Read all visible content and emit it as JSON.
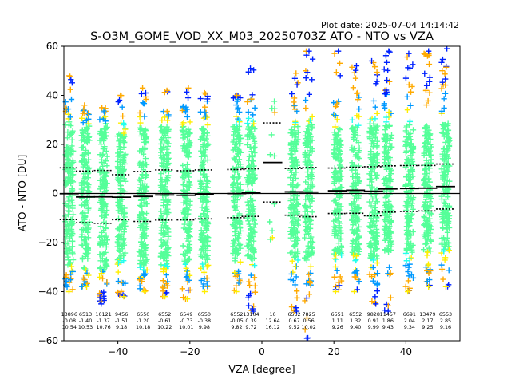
{
  "header": {
    "plot_date": "Plot date: 2025-07-04 14:14:42",
    "title": "S-O3M_GOME_VOD_XX_M03_20250703Z ATO - NTO vs VZA"
  },
  "chart_data": {
    "type": "scatter",
    "title": "S-O3M_GOME_VOD_XX_M03_20250703Z ATO - NTO vs VZA",
    "xlabel": "VZA [degree]",
    "ylabel": "ATO - NTO [DU]",
    "xlim": [
      -55,
      55
    ],
    "ylim": [
      -60,
      60
    ],
    "xticks": [
      -40,
      -20,
      0,
      20,
      40
    ],
    "yticks": [
      -60,
      -40,
      -20,
      0,
      20,
      40,
      60
    ],
    "marker": "+",
    "colormap": [
      "#0022ff",
      "#0099ff",
      "#22ffee",
      "#55ff99",
      "#aaff44",
      "#ffee00",
      "#ffaa00"
    ],
    "zero_line": true,
    "bins": [
      {
        "vza": -53.5,
        "count": "13896",
        "mean": "-0.08",
        "std": "10.54",
        "min": -40,
        "max": 48
      },
      {
        "vza": -49,
        "count": "6513",
        "mean": "-1.40",
        "std": "10.53",
        "min": -38,
        "max": 36
      },
      {
        "vza": -44,
        "count": "10121",
        "mean": "-1.37",
        "std": "10.76",
        "min": -45,
        "max": 35
      },
      {
        "vza": -39,
        "count": "9456",
        "mean": "-1.51",
        "std": "9.18",
        "min": -42,
        "max": 40
      },
      {
        "vza": -33,
        "count": "6550",
        "mean": "-1.20",
        "std": "10.18",
        "min": -40,
        "max": 43
      },
      {
        "vza": -27,
        "count": "6552",
        "mean": "-0.61",
        "std": "10.22",
        "min": -42,
        "max": 42
      },
      {
        "vza": -21,
        "count": "6549",
        "mean": "-0.73",
        "std": "10.01",
        "min": -43,
        "max": 43
      },
      {
        "vza": -16,
        "count": "6550",
        "mean": "-0.38",
        "std": "9.98",
        "min": -40,
        "max": 41
      },
      {
        "vza": -7,
        "count": "6552",
        "mean": "-0.05",
        "std": "9.82",
        "min": -40,
        "max": 40
      },
      {
        "vza": -3,
        "count": "13104",
        "mean": "0.39",
        "std": "9.72",
        "min": -48,
        "max": 51
      },
      {
        "vza": 3,
        "count": "10",
        "mean": "12.64",
        "std": "16.12",
        "min": -18,
        "max": 33
      },
      {
        "vza": 9,
        "count": "6552",
        "mean": "0.67",
        "std": "9.52",
        "min": -48,
        "max": 49
      },
      {
        "vza": 13,
        "count": "7825",
        "mean": "0.56",
        "std": "10.02",
        "min": -59,
        "max": 58
      },
      {
        "vza": 21,
        "count": "6551",
        "mean": "1.11",
        "std": "9.26",
        "min": -40,
        "max": 58
      },
      {
        "vza": 26,
        "count": "6552",
        "mean": "1.32",
        "std": "9.40",
        "min": -40,
        "max": 52
      },
      {
        "vza": 31,
        "count": "9828",
        "mean": "0.91",
        "std": "9.99",
        "min": -45,
        "max": 54
      },
      {
        "vza": 35,
        "count": "11457",
        "mean": "1.86",
        "std": "9.43",
        "min": -48,
        "max": 58
      },
      {
        "vza": 41,
        "count": "6691",
        "mean": "2.04",
        "std": "9.34",
        "min": -40,
        "max": 57
      },
      {
        "vza": 46,
        "count": "13479",
        "mean": "2.17",
        "std": "9.25",
        "min": -38,
        "max": 58
      },
      {
        "vza": 51,
        "count": "6553",
        "mean": "2.85",
        "std": "9.16",
        "min": -38,
        "max": 59
      }
    ]
  }
}
